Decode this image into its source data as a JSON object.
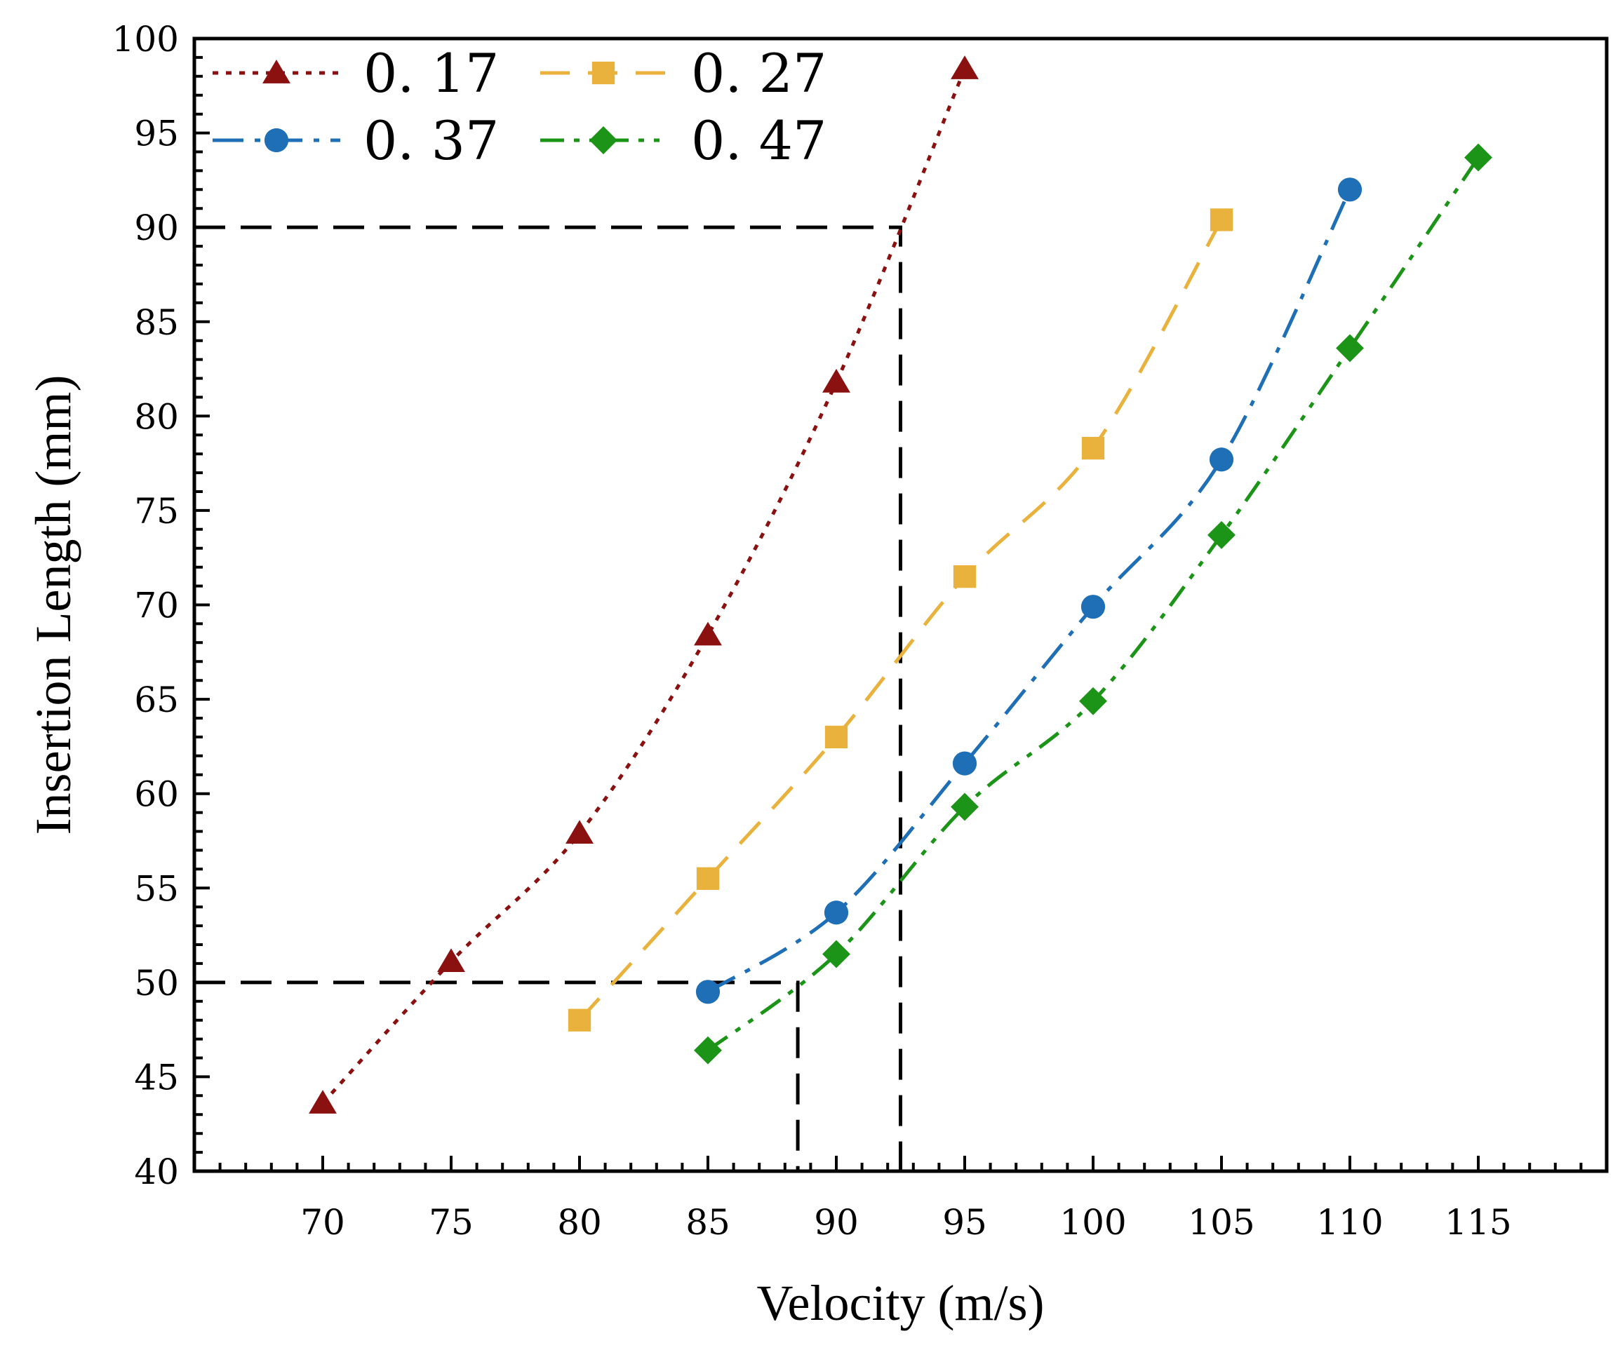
{
  "chart_data": {
    "type": "line",
    "title": "",
    "xlabel": "Velocity (m/s)",
    "ylabel": "Insertion Length (mm)",
    "xlim": [
      65,
      120
    ],
    "ylim": [
      40,
      100
    ],
    "x_ticks": [
      70,
      75,
      80,
      85,
      90,
      95,
      100,
      105,
      110,
      115
    ],
    "x_tick_labels": [
      "70",
      "75",
      "80",
      "85",
      "90",
      "95",
      "100",
      "105",
      "110",
      "115"
    ],
    "y_ticks": [
      40,
      45,
      50,
      55,
      60,
      65,
      70,
      75,
      80,
      85,
      90,
      95,
      100
    ],
    "y_tick_labels": [
      "40",
      "45",
      "50",
      "55",
      "60",
      "65",
      "70",
      "75",
      "80",
      "85",
      "90",
      "95",
      "100"
    ],
    "grid": false,
    "legend_position": "top-left",
    "series": [
      {
        "name": "0. 17",
        "color": "#8B1010",
        "marker": "triangle",
        "line_style": "dotted",
        "x": [
          70,
          75,
          80,
          85,
          90,
          95
        ],
        "y": [
          43.6,
          51.1,
          57.9,
          68.4,
          81.8,
          98.4
        ]
      },
      {
        "name": "0. 27",
        "color": "#E9B23C",
        "marker": "square",
        "line_style": "dashed",
        "x": [
          80,
          85,
          90,
          95,
          100,
          105
        ],
        "y": [
          48.0,
          55.5,
          63.0,
          71.5,
          78.3,
          90.4
        ]
      },
      {
        "name": "0. 37",
        "color": "#1E6FB5",
        "marker": "circle",
        "line_style": "dash-dot",
        "x": [
          85,
          90,
          95,
          100,
          105,
          110
        ],
        "y": [
          49.5,
          53.7,
          61.6,
          69.9,
          77.7,
          92.0
        ]
      },
      {
        "name": "0. 47",
        "color": "#1B9417",
        "marker": "diamond",
        "line_style": "dash-dot-dot",
        "x": [
          85,
          90,
          95,
          100,
          105,
          110,
          115
        ],
        "y": [
          46.4,
          51.5,
          59.3,
          64.9,
          73.7,
          83.6,
          93.7
        ]
      }
    ],
    "reference_lines": [
      {
        "x": 92.5,
        "y": 90
      },
      {
        "x": 88.5,
        "y": 50
      }
    ]
  }
}
